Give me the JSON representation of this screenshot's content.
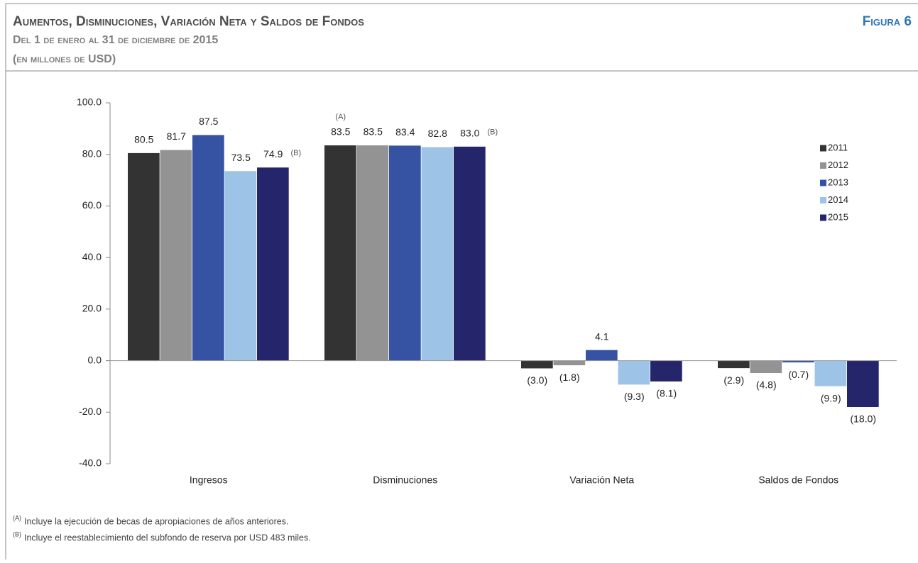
{
  "chart_data": {
    "type": "bar",
    "title": "Aumentos, Disminuciones, Variación Neta y Saldos de Fondos",
    "figure_label": "Figura 6",
    "subtitle": [
      "Del 1 de enero al 31 de diciembre de 2015",
      "(en millones de USD)"
    ],
    "categories": [
      "Ingresos",
      "Disminuciones",
      "Variación Neta",
      "Saldos de Fondos"
    ],
    "series": [
      {
        "name": "2011",
        "color": "#333333",
        "values": [
          80.5,
          83.5,
          -3.0,
          -2.9
        ],
        "value_labels": [
          "80.5",
          "83.5",
          "(3.0)",
          "(2.9)"
        ]
      },
      {
        "name": "2012",
        "color": "#939393",
        "values": [
          81.7,
          83.5,
          -1.8,
          -4.8
        ],
        "value_labels": [
          "81.7",
          "83.5",
          "(1.8)",
          "(4.8)"
        ]
      },
      {
        "name": "2013",
        "color": "#3653a3",
        "values": [
          87.5,
          83.4,
          4.1,
          -0.7
        ],
        "value_labels": [
          "87.5",
          "83.4",
          "4.1",
          "(0.7)"
        ]
      },
      {
        "name": "2014",
        "color": "#9dc3e6",
        "values": [
          73.5,
          82.8,
          -9.3,
          -9.9
        ],
        "value_labels": [
          "73.5",
          "82.8",
          "(9.3)",
          "(9.9)"
        ]
      },
      {
        "name": "2015",
        "color": "#25256b",
        "values": [
          74.9,
          83.0,
          -8.1,
          -18.0
        ],
        "value_labels": [
          "74.9",
          "83.0",
          "(8.1)",
          "(18.0)"
        ]
      }
    ],
    "ylim": [
      -40,
      100
    ],
    "yticks": [
      {
        "value": -40,
        "label": "-40.0"
      },
      {
        "value": -20,
        "label": "-20.0"
      },
      {
        "value": 0,
        "label": "0.0"
      },
      {
        "value": 20,
        "label": "20.0"
      },
      {
        "value": 40,
        "label": "40.0"
      },
      {
        "value": 60,
        "label": "60.0"
      },
      {
        "value": 80,
        "label": "80.0"
      },
      {
        "value": 100,
        "label": "100.0"
      }
    ],
    "legend": "right",
    "annotations": [
      {
        "text": "(A)",
        "series": 0,
        "category": 1,
        "position": "above"
      },
      {
        "text": "(B)",
        "series": 4,
        "category": 0,
        "position": "right"
      },
      {
        "text": "(B)",
        "series": 4,
        "category": 1,
        "position": "right"
      }
    ],
    "notes": [
      {
        "marker": "(A)",
        "text": "Incluye la ejecución de becas de apropiaciones de años anteriores."
      },
      {
        "marker": "(B)",
        "text": "Incluye el reestablecimiento del subfondo de reserva por USD 483 miles."
      }
    ]
  }
}
